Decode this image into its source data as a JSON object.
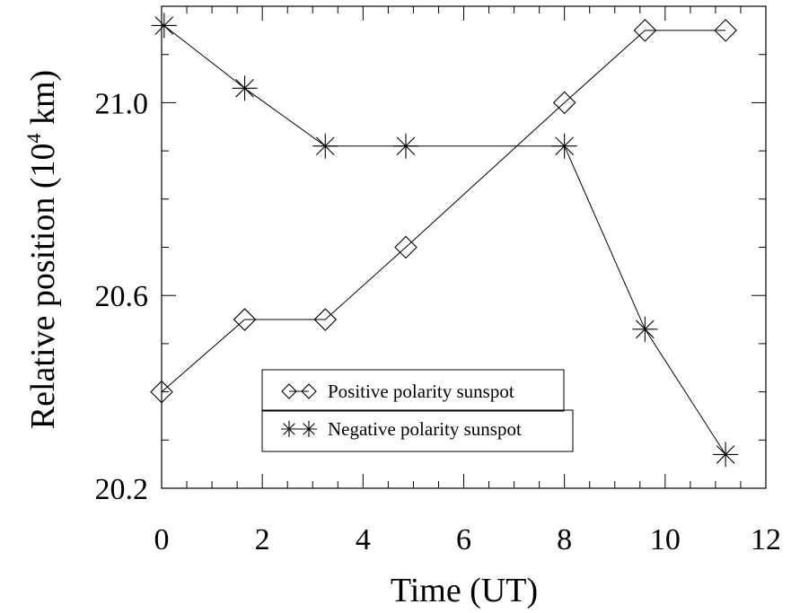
{
  "chart_data": {
    "type": "line",
    "xlabel": "Time (UT)",
    "ylabel_parts": {
      "before": "Relative position (10",
      "sup": "4",
      "after": " km)"
    },
    "xlim": [
      0,
      12
    ],
    "ylim": [
      20.2,
      21.2
    ],
    "x_ticks": [
      0,
      2,
      4,
      6,
      8,
      10,
      12
    ],
    "x_tick_labels": [
      "0",
      "2",
      "4",
      "6",
      "8",
      "10",
      "12"
    ],
    "y_ticks": [
      20.2,
      20.6,
      21.0
    ],
    "y_tick_labels": [
      "20.2",
      "20.6",
      "21.0"
    ],
    "grid": false,
    "legend_position": "lower-center",
    "series": [
      {
        "name": "Positive polarity sunspot",
        "marker": "diamond",
        "x": [
          0.0,
          1.65,
          3.25,
          4.85,
          8.0,
          9.6,
          11.2
        ],
        "y": [
          20.4,
          20.55,
          20.55,
          20.7,
          21.0,
          21.15,
          21.15
        ]
      },
      {
        "name": "Negative polarity sunspot",
        "marker": "asterisk",
        "x": [
          0.05,
          1.65,
          3.25,
          4.85,
          8.0,
          9.6,
          11.2
        ],
        "y": [
          21.16,
          21.03,
          20.91,
          20.91,
          20.91,
          20.53,
          20.27
        ]
      }
    ]
  }
}
